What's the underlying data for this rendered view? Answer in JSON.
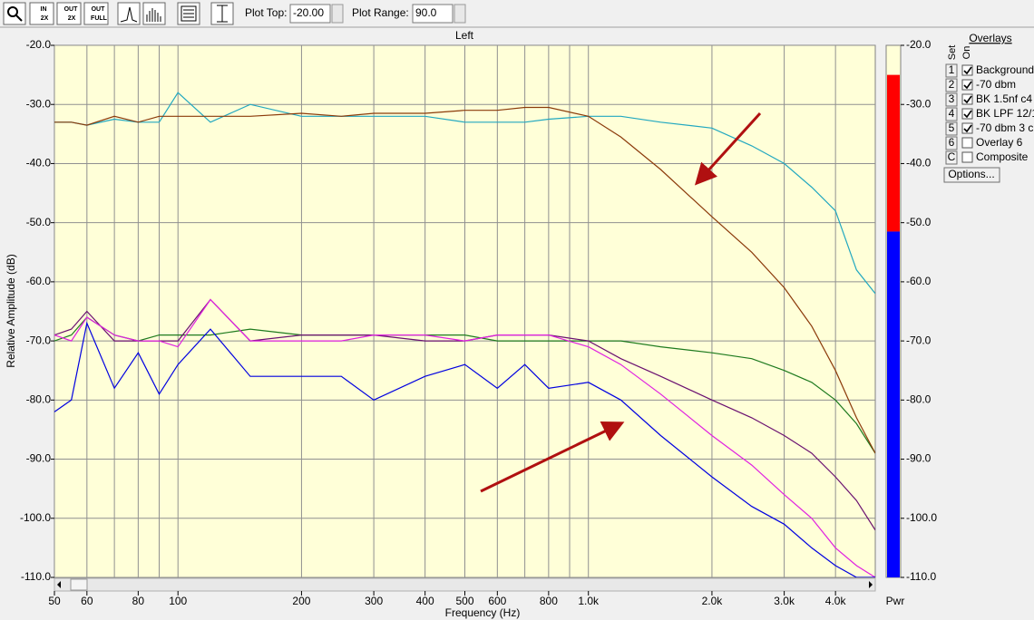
{
  "toolbar": {
    "zoom_buttons": [
      {
        "top": "IN",
        "bottom": "2X"
      },
      {
        "top": "OUT",
        "bottom": "2X"
      },
      {
        "top": "OUT",
        "bottom": "FULL"
      }
    ],
    "plot_top_label": "Plot Top:",
    "plot_top_value": "-20.00",
    "plot_range_label": "Plot Range:",
    "plot_range_value": "90.0"
  },
  "chart_data": {
    "type": "line",
    "title": "Left",
    "x_label": "Frequency (Hz)",
    "y_label": "Relative Amplitude (dB)",
    "xscale": "log",
    "grid": true,
    "xlim": [
      50,
      5000
    ],
    "xticks": [
      50,
      60,
      80,
      100,
      200,
      300,
      400,
      500,
      600,
      800,
      {
        "value": 1000,
        "label": "1.0k"
      },
      {
        "value": 2000,
        "label": "2.0k"
      },
      {
        "value": 3000,
        "label": "3.0k"
      },
      {
        "value": 4000,
        "label": "4.0k"
      }
    ],
    "xminorticks": [
      70,
      90,
      700,
      900
    ],
    "ylim": [
      -110,
      -20
    ],
    "yticks": [
      {
        "value": -20,
        "label": "-20.0"
      },
      {
        "value": -30,
        "label": "-30.0"
      },
      {
        "value": -40,
        "label": "-40.0"
      },
      {
        "value": -50,
        "label": "-50.0"
      },
      {
        "value": -60,
        "label": "-60.0"
      },
      {
        "value": -70,
        "label": "-70.0"
      },
      {
        "value": -80,
        "label": "-80.0"
      },
      {
        "value": -90,
        "label": "-90.0"
      },
      {
        "value": -100,
        "label": "-100.0"
      },
      {
        "value": -110,
        "label": "-110.0"
      }
    ],
    "x": [
      50,
      55,
      60,
      70,
      80,
      90,
      100,
      120,
      150,
      200,
      250,
      300,
      400,
      500,
      600,
      700,
      800,
      1000,
      1200,
      1500,
      2000,
      2500,
      3000,
      3500,
      4000,
      4500,
      5000
    ],
    "series": [
      {
        "color": "#1e7a1e",
        "values": [
          -70,
          -69,
          -66,
          -69,
          -70,
          -69,
          -69,
          -69,
          -68,
          -69,
          -69,
          -69,
          -69,
          -69,
          -70,
          -70,
          -70,
          -70,
          -70,
          -71,
          -72,
          -73,
          -75,
          -77,
          -80,
          -84,
          -89
        ]
      },
      {
        "color": "#22a8c0",
        "values": [
          -33,
          -33,
          -33.5,
          -32.5,
          -33,
          -33,
          -28,
          -33,
          -30,
          -32,
          -32,
          -32,
          -32,
          -33,
          -33,
          -33,
          -32.5,
          -32,
          -32,
          -33,
          -34,
          -37,
          -40,
          -44,
          -48,
          -58,
          -62
        ]
      },
      {
        "color": "#6a1070",
        "values": [
          -69,
          -68,
          -65,
          -70,
          -70,
          -70,
          -70,
          -63,
          -70,
          -69,
          -69,
          -69,
          -70,
          -70,
          -69,
          -69,
          -69,
          -70,
          -73,
          -76,
          -80,
          -83,
          -86,
          -89,
          -93,
          -97,
          -102
        ]
      },
      {
        "color": "#e020e0",
        "values": [
          -69,
          -70,
          -66,
          -69,
          -70,
          -70,
          -71,
          -63,
          -70,
          -70,
          -70,
          -69,
          -69,
          -70,
          -69,
          -69,
          -69,
          -71,
          -74,
          -79,
          -86,
          -91,
          -96,
          -100,
          -105,
          -108,
          -110
        ]
      },
      {
        "color": "#8b3a0a",
        "values": [
          -33,
          -33,
          -33.5,
          -32,
          -33,
          -32,
          -32,
          -32,
          -32,
          -31.5,
          -32,
          -31.5,
          -31.5,
          -31,
          -31,
          -30.5,
          -30.5,
          -32,
          -35.5,
          -41,
          -49,
          -55,
          -61,
          -67.5,
          -75,
          -83,
          -89
        ]
      },
      {
        "color": "#0000e0",
        "values": [
          -82,
          -80,
          -67,
          -78,
          -72,
          -79,
          -74,
          -68,
          -76,
          -76,
          -76,
          -80,
          -76,
          -74,
          -78,
          -74,
          -78,
          -77,
          -80,
          -86,
          -93,
          -98,
          -101,
          -105,
          -108,
          -110,
          -110
        ]
      }
    ]
  },
  "power_bar": {
    "label": "Pwr",
    "peak": -25,
    "average": -51.5
  },
  "overlays": {
    "title": "Overlays",
    "set_label": "Set",
    "on_label": "On",
    "options": "Options...",
    "items": [
      {
        "key": "1",
        "label": "Background",
        "checked": true,
        "color": "#1a8a1a"
      },
      {
        "key": "2",
        "label": "-70 dbm",
        "checked": true,
        "color": "#1aa3b3"
      },
      {
        "key": "3",
        "label": "BK 1.5nf c4",
        "checked": true,
        "color": "#800080"
      },
      {
        "key": "4",
        "label": "BK LPF 12/1",
        "checked": true,
        "color": "#d81cd8"
      },
      {
        "key": "5",
        "label": "-70 dbm 3 c",
        "checked": true,
        "color": "#7a2a00"
      },
      {
        "key": "6",
        "label": "Overlay 6",
        "checked": false,
        "color": "#e08050"
      },
      {
        "key": "C",
        "label": "Composite",
        "checked": false,
        "color": "#000000"
      }
    ]
  }
}
